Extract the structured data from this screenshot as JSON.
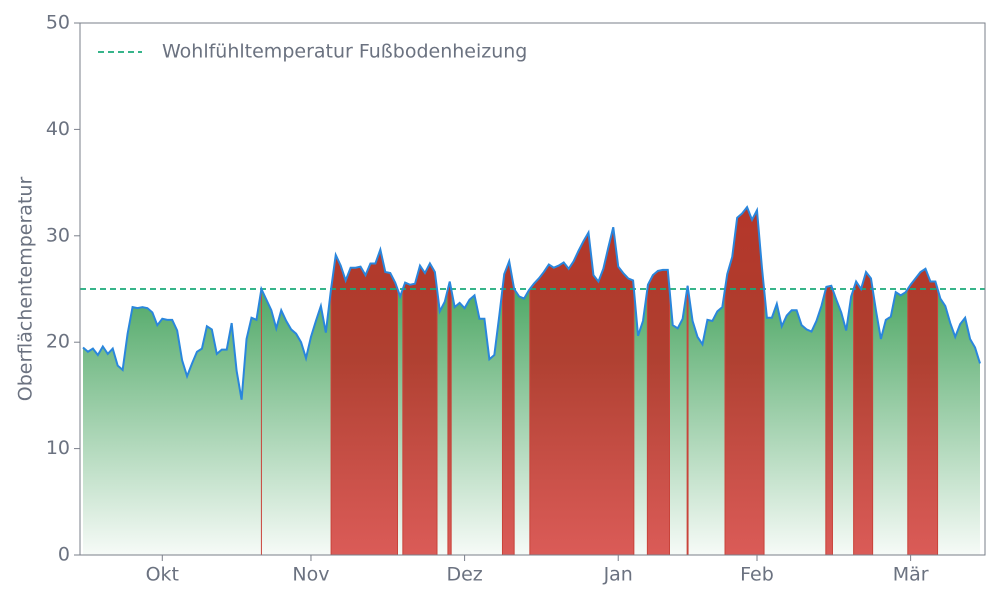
{
  "chart_data": {
    "type": "line",
    "y_label": "Oberflächentemperatur",
    "categories": [
      null,
      null,
      null,
      null,
      null,
      null,
      null,
      null,
      null,
      null,
      null,
      null,
      null,
      null,
      null,
      null,
      "Okt",
      null,
      null,
      null,
      null,
      null,
      null,
      null,
      null,
      null,
      null,
      null,
      null,
      null,
      null,
      null,
      null,
      null,
      null,
      null,
      null,
      null,
      null,
      null,
      null,
      null,
      null,
      null,
      null,
      null,
      "Nov",
      null,
      null,
      null,
      null,
      null,
      null,
      null,
      null,
      null,
      null,
      null,
      null,
      null,
      null,
      null,
      null,
      null,
      null,
      null,
      null,
      null,
      null,
      null,
      null,
      null,
      null,
      null,
      null,
      null,
      null,
      "Dez",
      null,
      null,
      null,
      null,
      null,
      null,
      null,
      null,
      null,
      null,
      null,
      null,
      null,
      null,
      null,
      null,
      null,
      null,
      null,
      null,
      null,
      null,
      null,
      null,
      null,
      null,
      null,
      null,
      null,
      null,
      "Jan",
      null,
      null,
      null,
      null,
      null,
      null,
      null,
      null,
      null,
      null,
      null,
      null,
      null,
      null,
      null,
      null,
      null,
      null,
      null,
      null,
      null,
      null,
      null,
      null,
      null,
      null,
      null,
      "Feb",
      null,
      null,
      null,
      null,
      null,
      null,
      null,
      null,
      null,
      null,
      null,
      null,
      null,
      null,
      null,
      null,
      null,
      null,
      null,
      null,
      null,
      null,
      null,
      null,
      null,
      null,
      null,
      null,
      null,
      null,
      "Mär",
      null,
      null,
      null,
      null,
      null,
      null,
      null,
      null,
      null,
      null,
      null,
      null,
      null,
      null
    ],
    "values": [
      19.5,
      19.1,
      19.4,
      18.8,
      19.6,
      18.9,
      19.4,
      17.8,
      17.4,
      20.8,
      23.3,
      23.2,
      23.3,
      23.2,
      22.8,
      21.6,
      22.2,
      22.1,
      22.1,
      21.1,
      18.3,
      16.8,
      18,
      19.1,
      19.4,
      21.5,
      21.2,
      18.9,
      19.3,
      19.3,
      21.8,
      17.3,
      14.6,
      20.3,
      22.3,
      22.1,
      25,
      24,
      23,
      21.3,
      23,
      22,
      21.2,
      20.8,
      20,
      18.5,
      20.5,
      22,
      23.4,
      20.9,
      24.8,
      28.2,
      27.2,
      25.8,
      27,
      27,
      27.1,
      26.3,
      27.4,
      27.4,
      28.7,
      26.6,
      26.5,
      25.6,
      24.3,
      25.6,
      25.4,
      25.5,
      27.2,
      26.5,
      27.4,
      26.6,
      22.9,
      23.8,
      25.7,
      23.3,
      23.7,
      23.2,
      24,
      24.4,
      22.2,
      22.2,
      18.4,
      18.8,
      22.5,
      26.4,
      27.6,
      25,
      24.3,
      24.1,
      24.9,
      25.5,
      26,
      26.6,
      27.3,
      27,
      27.2,
      27.5,
      26.9,
      27.6,
      28.6,
      29.5,
      30.3,
      26.3,
      25.7,
      26.9,
      28.9,
      30.8,
      27.1,
      26.5,
      26,
      25.8,
      20.6,
      22,
      25.4,
      26.3,
      26.7,
      26.8,
      26.8,
      21.6,
      21.3,
      22.2,
      25.3,
      22,
      20.5,
      19.8,
      22.1,
      22,
      22.9,
      23.3,
      26.4,
      28,
      31.7,
      32.1,
      32.7,
      31.5,
      32.4,
      27,
      22.3,
      22.3,
      23.6,
      21.5,
      22.5,
      23,
      23,
      21.6,
      21.2,
      21,
      22,
      23.4,
      25.2,
      25.3,
      24,
      22.8,
      21.1,
      24.3,
      25.7,
      25,
      26.6,
      26,
      23,
      20.3,
      22.1,
      22.4,
      24.7,
      24.4,
      24.7,
      25.4,
      26,
      26.6,
      26.9,
      25.7,
      25.7,
      24.1,
      23.4,
      21.8,
      20.5,
      21.7,
      22.3,
      20.3,
      19.5,
      18
    ],
    "color": "#2a86dc",
    "below_color": "#4fa866",
    "above_color": "#b5362a",
    "threshold": {
      "value": 25,
      "label": "Wohlfühltemperatur Fußbodenheizung",
      "color": "#1aaa7a"
    },
    "ylim": [
      0,
      50
    ],
    "yticks": [
      0,
      10,
      20,
      30,
      40,
      50
    ]
  }
}
